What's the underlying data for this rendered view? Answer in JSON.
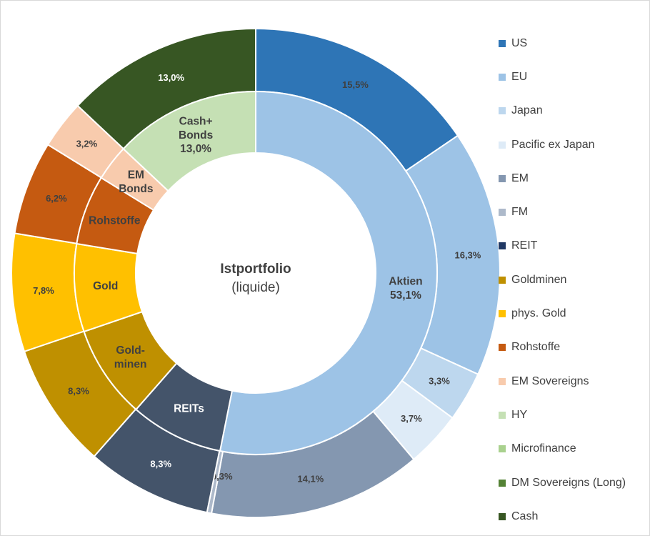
{
  "chart_data": {
    "type": "donut",
    "center": {
      "title": "Istportfolio",
      "subtitle": "(liquide)"
    },
    "inner_ring": [
      {
        "label_lines": [
          "Aktien",
          "53,1%"
        ],
        "value": 53.1,
        "color": "#9DC3E6",
        "text_color": "#404040"
      },
      {
        "label_lines": [
          "REITs"
        ],
        "value": 8.3,
        "color": "#44546A",
        "text_color": "#ffffff"
      },
      {
        "label_lines": [
          "Gold-",
          "minen"
        ],
        "value": 8.3,
        "color": "#BF9000",
        "text_color": "#404040"
      },
      {
        "label_lines": [
          "Gold"
        ],
        "value": 7.8,
        "color": "#FFC000",
        "text_color": "#404040"
      },
      {
        "label_lines": [
          "Rohstoffe"
        ],
        "value": 6.2,
        "color": "#C55A11",
        "text_color": "#404040"
      },
      {
        "label_lines": [
          "EM",
          "Bonds"
        ],
        "value": 3.2,
        "color": "#F8CBAD",
        "text_color": "#404040"
      },
      {
        "label_lines": [
          "Cash+",
          "Bonds",
          "13,0%"
        ],
        "value": 13.0,
        "color": "#C5E0B4",
        "text_color": "#404040"
      }
    ],
    "outer_ring": [
      {
        "label": "15,5%",
        "value": 15.5,
        "color": "#2E75B6",
        "text_color": "#404040"
      },
      {
        "label": "16,3%",
        "value": 16.3,
        "color": "#9DC3E6",
        "text_color": "#404040"
      },
      {
        "label": "3,3%",
        "value": 3.3,
        "color": "#BDD7EE",
        "text_color": "#404040"
      },
      {
        "label": "3,7%",
        "value": 3.7,
        "color": "#DEEBF7",
        "text_color": "#404040"
      },
      {
        "label": "14,1%",
        "value": 14.1,
        "color": "#8497B0",
        "text_color": "#404040"
      },
      {
        "label": "0,3%",
        "value": 0.3,
        "color": "#ADB9CA",
        "text_color": "#404040"
      },
      {
        "label": "8,3%",
        "value": 8.3,
        "color": "#44546A",
        "text_color": "#ffffff"
      },
      {
        "label": "8,3%",
        "value": 8.3,
        "color": "#BF9000",
        "text_color": "#404040"
      },
      {
        "label": "7,8%",
        "value": 7.8,
        "color": "#FFC000",
        "text_color": "#404040"
      },
      {
        "label": "6,2%",
        "value": 6.2,
        "color": "#C55A11",
        "text_color": "#404040"
      },
      {
        "label": "3,2%",
        "value": 3.2,
        "color": "#F8CBAD",
        "text_color": "#404040"
      },
      {
        "label": "13,0%",
        "value": 13.0,
        "color": "#375623",
        "text_color": "#ffffff"
      }
    ],
    "legend": [
      {
        "label": "US",
        "color": "#2E75B6"
      },
      {
        "label": "EU",
        "color": "#9DC3E6"
      },
      {
        "label": "Japan",
        "color": "#BDD7EE"
      },
      {
        "label": "Pacific ex Japan",
        "color": "#DEEBF7"
      },
      {
        "label": "EM",
        "color": "#8497B0"
      },
      {
        "label": "FM",
        "color": "#ADB9CA"
      },
      {
        "label": "REIT",
        "color": "#203864"
      },
      {
        "label": "Goldminen",
        "color": "#BF9000"
      },
      {
        "label": "phys. Gold",
        "color": "#FFC000"
      },
      {
        "label": "Rohstoffe",
        "color": "#C55A11"
      },
      {
        "label": "EM Sovereigns",
        "color": "#F8CBAD"
      },
      {
        "label": "HY",
        "color": "#C5E0B4"
      },
      {
        "label": "Microfinance",
        "color": "#A9D18E"
      },
      {
        "label": "DM Sovereigns (Long)",
        "color": "#548235"
      },
      {
        "label": "Cash",
        "color": "#375623"
      }
    ],
    "legend_position": "right"
  }
}
